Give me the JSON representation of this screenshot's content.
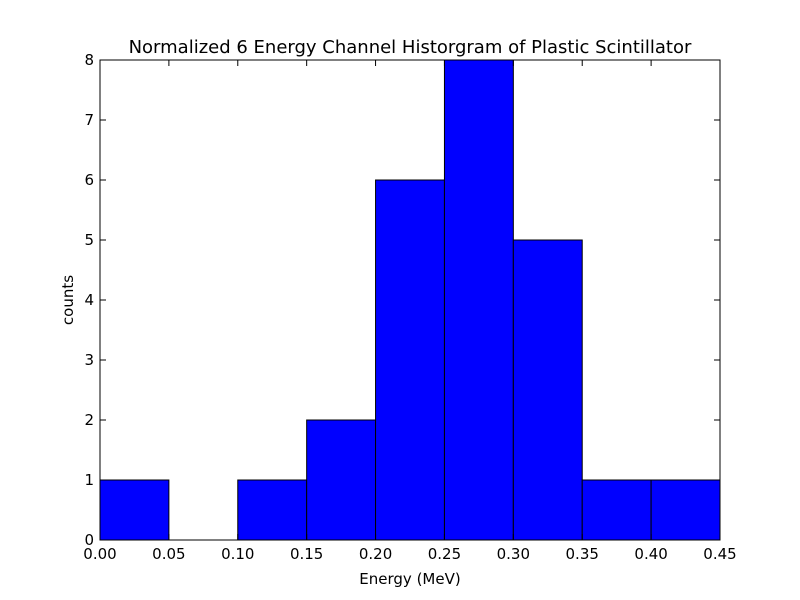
{
  "chart_data": {
    "type": "bar",
    "title": "Normalized 6 Energy Channel Historgram of Plastic Scintillator",
    "xlabel": "Energy (MeV)",
    "ylabel": "counts",
    "bin_edges": [
      0.0,
      0.05,
      0.1,
      0.15,
      0.2,
      0.25,
      0.3,
      0.35,
      0.4,
      0.45
    ],
    "values": [
      1,
      0,
      1,
      2,
      6,
      8,
      5,
      1,
      1
    ],
    "xlim": [
      0.0,
      0.45
    ],
    "ylim": [
      0,
      8
    ],
    "x_ticks": [
      "0.00",
      "0.05",
      "0.10",
      "0.15",
      "0.20",
      "0.25",
      "0.30",
      "0.35",
      "0.40",
      "0.45"
    ],
    "y_ticks": [
      "0",
      "1",
      "2",
      "3",
      "4",
      "5",
      "6",
      "7",
      "8"
    ],
    "bar_color": "#0000ff",
    "edge_color": "#000000",
    "grid": false
  }
}
